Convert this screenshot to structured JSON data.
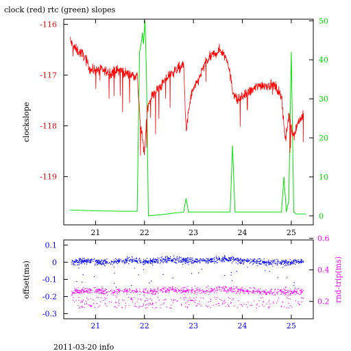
{
  "title": "clock (red) rtc (green) slopes",
  "footer": "2011-03-20 info",
  "colors": {
    "red": "#ff0000",
    "green": "#00e000",
    "blue": "#0000ff",
    "magenta": "#ff00ff",
    "black": "#000000"
  },
  "chart_data": [
    {
      "type": "line",
      "name_label": "top",
      "ylabel": "clockslope",
      "xlim": [
        20.35,
        25.45
      ],
      "ylim_left": [
        -119.95,
        -115.9
      ],
      "ylim_right": [
        -2.3,
        50.4
      ],
      "x_ticks": [
        21,
        22,
        23,
        24,
        25
      ],
      "x_tick_labels": [
        "21",
        "22",
        "23",
        "24",
        "25"
      ],
      "y_left_ticks": [
        -116,
        -117,
        -118,
        -119
      ],
      "y_left_tick_labels": [
        "-116",
        "-117",
        "-118",
        "-119"
      ],
      "y_right_ticks": [
        50,
        40,
        30,
        20,
        10,
        0
      ],
      "y_right_tick_labels": [
        "50",
        "40",
        "30",
        "20",
        "10",
        "0"
      ],
      "series": [
        {
          "color": "red",
          "axis": "left",
          "x": [
            20.48,
            20.52,
            20.6,
            20.75,
            20.9,
            21.1,
            21.3,
            21.5,
            21.7,
            21.85,
            21.92,
            21.97,
            22.0,
            22.05,
            22.1,
            22.2,
            22.35,
            22.5,
            22.65,
            22.8,
            22.85,
            22.95,
            23.1,
            23.25,
            23.4,
            23.55,
            23.7,
            23.8,
            23.9,
            24.05,
            24.2,
            24.35,
            24.5,
            24.65,
            24.8,
            24.88,
            24.95,
            25.05,
            25.15,
            25.25
          ],
          "y": [
            -116.3,
            -116.4,
            -116.5,
            -116.6,
            -116.9,
            -116.9,
            -116.95,
            -116.9,
            -117.0,
            -117.0,
            -118.0,
            -118.3,
            -118.6,
            -117.7,
            -117.5,
            -117.35,
            -117.2,
            -117.0,
            -116.9,
            -116.8,
            -118.1,
            -117.4,
            -117.1,
            -116.75,
            -116.6,
            -116.5,
            -116.7,
            -117.3,
            -117.5,
            -117.4,
            -117.3,
            -117.2,
            -117.2,
            -117.2,
            -117.4,
            -118.3,
            -117.8,
            -118.2,
            -117.9,
            -117.8
          ]
        },
        {
          "color": "green",
          "axis": "right",
          "x": [
            20.48,
            21.0,
            21.5,
            21.85,
            21.9,
            21.93,
            21.96,
            21.98,
            22.01,
            22.04,
            22.08,
            22.4,
            22.8,
            22.85,
            22.9,
            23.3,
            23.75,
            23.8,
            23.85,
            24.4,
            24.8,
            24.85,
            24.9,
            24.95,
            25.0,
            25.05,
            25.1,
            25.2,
            25.3
          ],
          "y": [
            1.5,
            1.3,
            1.2,
            1.2,
            42.0,
            44.0,
            47.0,
            44.0,
            50.0,
            37.0,
            0.0,
            0.4,
            1.0,
            4.5,
            1.0,
            1.0,
            1.0,
            18.0,
            1.0,
            1.0,
            1.0,
            10.0,
            1.0,
            4.0,
            42.0,
            1.0,
            0.5,
            0.5,
            0.5
          ]
        }
      ]
    },
    {
      "type": "scatter",
      "name_label": "bottom",
      "ylabel_left": "offset(ms)",
      "ylabel_right": "rnd-trip(ms)",
      "xlim": [
        20.35,
        25.45
      ],
      "ylim_left": [
        -0.33,
        0.13
      ],
      "ylim_right": [
        0.09,
        0.59
      ],
      "x_ticks": [
        21,
        22,
        23,
        24,
        25
      ],
      "x_tick_labels": [
        "21",
        "22",
        "23",
        "24",
        "25"
      ],
      "y_left_ticks": [
        0.1,
        0,
        -0.1,
        -0.2,
        -0.3
      ],
      "y_left_tick_labels": [
        "0.1",
        "0",
        "-0.1",
        "-0.2",
        "-0.3"
      ],
      "y_right_ticks": [
        0.6,
        0.4,
        0.2
      ],
      "y_right_tick_labels": [
        "0.6",
        "0.4",
        "0.2"
      ],
      "series": [
        {
          "color": "blue",
          "axis": "left",
          "x": [
            20.5,
            20.75,
            21.0,
            21.25,
            21.5,
            21.75,
            22.0,
            22.25,
            22.5,
            22.75,
            23.0,
            23.25,
            23.5,
            23.75,
            24.0,
            24.25,
            24.5,
            24.75,
            25.0,
            25.25
          ],
          "y": [
            0.0,
            0.01,
            0.005,
            0.0,
            0.01,
            0.015,
            0.005,
            0.01,
            0.02,
            0.015,
            0.01,
            0.01,
            0.02,
            0.02,
            0.01,
            0.01,
            0.0,
            0.005,
            0.0,
            0.01
          ]
        },
        {
          "color": "magenta",
          "axis": "right",
          "x": [
            20.5,
            20.75,
            21.0,
            21.25,
            21.5,
            21.75,
            22.0,
            22.25,
            22.5,
            22.75,
            23.0,
            23.25,
            23.5,
            23.75,
            24.0,
            24.25,
            24.5,
            24.75,
            25.0,
            25.25
          ],
          "y": [
            0.26,
            0.27,
            0.27,
            0.26,
            0.27,
            0.27,
            0.26,
            0.27,
            0.28,
            0.27,
            0.27,
            0.27,
            0.28,
            0.28,
            0.27,
            0.27,
            0.26,
            0.27,
            0.26,
            0.27
          ]
        }
      ]
    }
  ]
}
